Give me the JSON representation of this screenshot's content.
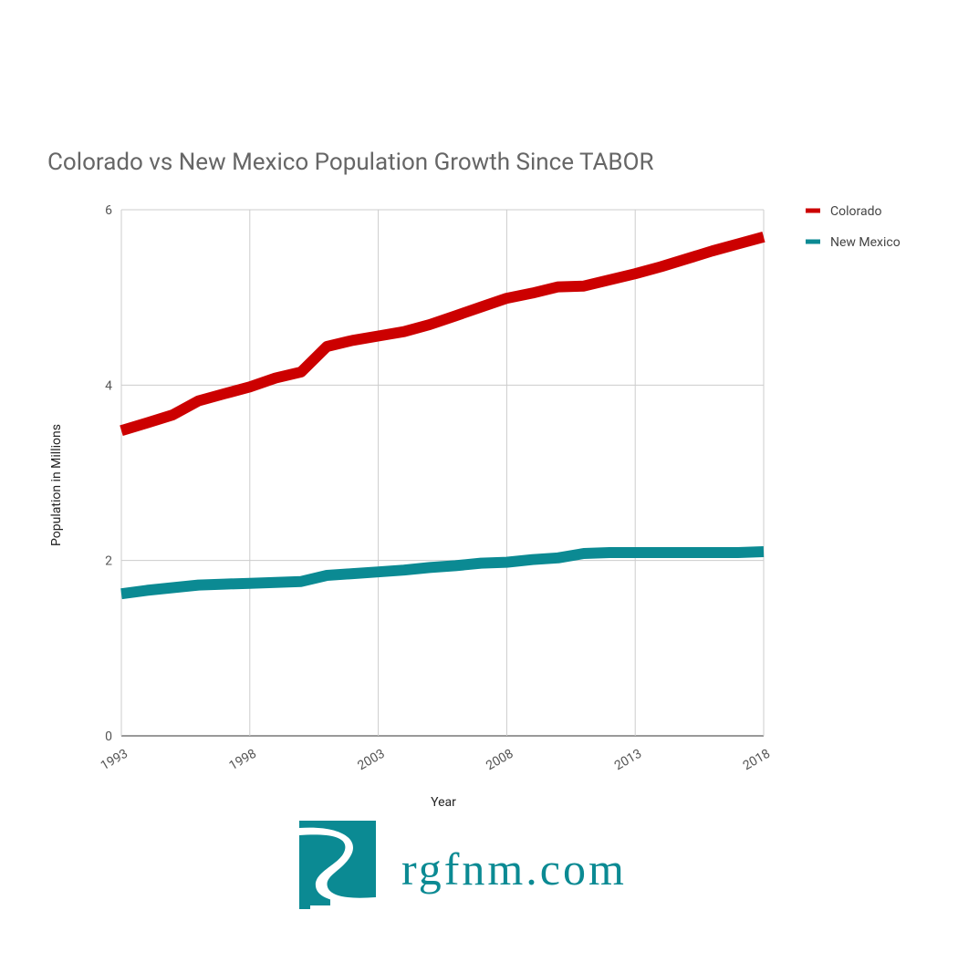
{
  "chart_data": {
    "type": "line",
    "title": "Colorado vs New Mexico Population Growth Since TABOR",
    "x_label": "Year",
    "y_label": "Population in Millions",
    "x": [
      1993,
      1994,
      1995,
      1996,
      1997,
      1998,
      1999,
      2000,
      2001,
      2002,
      2003,
      2004,
      2005,
      2006,
      2007,
      2008,
      2009,
      2010,
      2011,
      2012,
      2013,
      2014,
      2015,
      2016,
      2017,
      2018
    ],
    "series": [
      {
        "name": "Colorado",
        "color": "#cc0000",
        "values": [
          3.48,
          3.57,
          3.66,
          3.82,
          3.9,
          3.98,
          4.08,
          4.15,
          4.44,
          4.51,
          4.56,
          4.61,
          4.69,
          4.79,
          4.89,
          4.99,
          5.05,
          5.12,
          5.13,
          5.2,
          5.27,
          5.35,
          5.44,
          5.53,
          5.61,
          5.69
        ]
      },
      {
        "name": "New Mexico",
        "color": "#0b8a93",
        "values": [
          1.62,
          1.66,
          1.69,
          1.72,
          1.73,
          1.74,
          1.75,
          1.76,
          1.83,
          1.85,
          1.87,
          1.89,
          1.92,
          1.94,
          1.97,
          1.98,
          2.01,
          2.03,
          2.08,
          2.09,
          2.09,
          2.09,
          2.09,
          2.09,
          2.09,
          2.1
        ]
      }
    ],
    "xlim": [
      1993,
      2018
    ],
    "xticks": [
      1993,
      1998,
      2003,
      2008,
      2013,
      2018
    ],
    "ylim": [
      0,
      6
    ],
    "yticks": [
      0,
      2,
      4,
      6
    ],
    "grid": true
  },
  "logo": {
    "text": "rgfnm.com"
  }
}
